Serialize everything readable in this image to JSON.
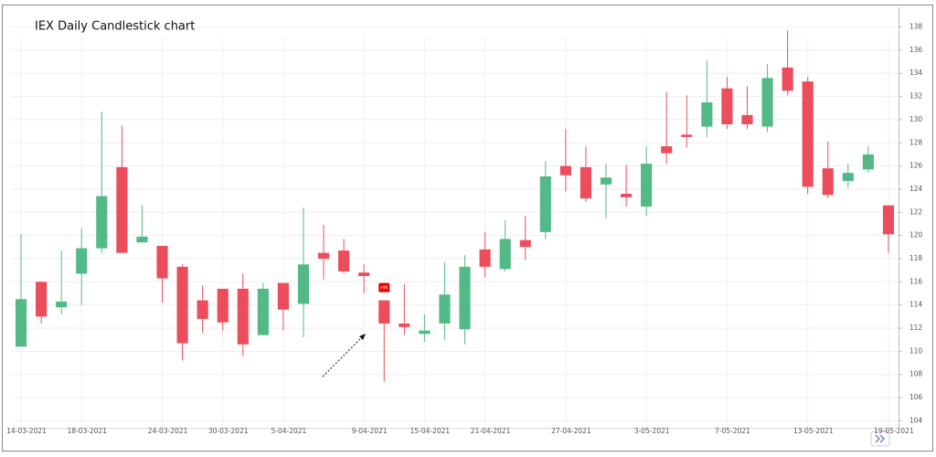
{
  "chart_data": {
    "type": "candlestick",
    "title": "IEX Daily Candlestick chart",
    "categories": [
      "14-03-2021",
      null,
      null,
      "18-03-2021",
      null,
      null,
      null,
      "24-03-2021",
      null,
      null,
      "30-03-2021",
      null,
      null,
      "5-04-2021",
      null,
      null,
      null,
      "9-04-2021",
      null,
      null,
      "15-04-2021",
      null,
      null,
      "21-04-2021",
      null,
      null,
      null,
      "27-04-2021",
      null,
      null,
      null,
      "3-05-2021",
      null,
      null,
      null,
      "7-05-2021",
      null,
      null,
      null,
      "13-05-2021",
      null,
      null,
      null,
      "19-05-2021"
    ],
    "open": [
      110.4,
      116.0,
      113.8,
      116.7,
      118.9,
      125.9,
      119.4,
      119.1,
      117.3,
      114.4,
      115.4,
      115.4,
      111.4,
      115.9,
      114.1,
      118.5,
      118.7,
      116.8,
      114.4,
      112.4,
      111.5,
      112.4,
      111.9,
      118.8,
      117.1,
      119.6,
      120.3,
      126.0,
      125.9,
      124.4,
      123.6,
      122.5,
      127.7,
      128.7,
      129.4,
      132.7,
      130.4,
      129.4,
      134.5,
      133.3,
      125.8,
      124.7,
      125.7,
      122.6
    ],
    "high": [
      120.1,
      116.0,
      118.7,
      120.6,
      130.7,
      129.5,
      122.6,
      119.1,
      117.5,
      115.7,
      115.4,
      116.7,
      115.9,
      115.9,
      122.4,
      120.9,
      119.7,
      117.5,
      114.4,
      115.8,
      113.2,
      117.7,
      118.3,
      120.3,
      121.3,
      121.7,
      126.4,
      129.2,
      127.7,
      126.2,
      126.1,
      127.7,
      132.4,
      132.1,
      135.1,
      133.7,
      132.9,
      134.8,
      137.7,
      133.7,
      128.1,
      126.2,
      127.7,
      122.6
    ],
    "low": [
      110.4,
      112.4,
      113.2,
      114.0,
      118.5,
      118.5,
      119.4,
      114.2,
      109.2,
      111.6,
      111.8,
      109.6,
      111.4,
      111.8,
      111.2,
      116.2,
      116.7,
      115.0,
      107.4,
      111.4,
      110.8,
      111.0,
      110.6,
      116.4,
      116.9,
      117.9,
      119.7,
      123.8,
      122.9,
      121.5,
      122.5,
      121.7,
      126.2,
      127.6,
      128.5,
      129.2,
      129.2,
      128.9,
      132.1,
      123.6,
      123.2,
      124.1,
      125.4,
      118.5
    ],
    "close": [
      114.5,
      113.0,
      114.3,
      118.9,
      123.4,
      118.5,
      119.9,
      116.3,
      110.7,
      112.8,
      112.5,
      110.6,
      115.4,
      113.6,
      117.5,
      118.0,
      116.9,
      116.5,
      112.4,
      112.1,
      111.8,
      114.9,
      117.3,
      117.3,
      119.7,
      119.0,
      125.1,
      125.2,
      123.2,
      125.0,
      123.3,
      126.2,
      127.1,
      128.5,
      131.5,
      129.6,
      129.6,
      133.6,
      132.5,
      124.2,
      123.5,
      125.4,
      127.0,
      120.1
    ],
    "up_color": "#53b987",
    "down_color": "#eb4d5c",
    "ylim": [
      103.4,
      139.7
    ],
    "yticks": [
      104,
      106,
      108,
      110,
      112,
      114,
      116,
      118,
      120,
      122,
      124,
      126,
      128,
      130,
      132,
      134,
      136,
      138
    ],
    "grid": true,
    "annotations": [
      {
        "label": "HM",
        "index": 18,
        "color": "#e60000"
      }
    ]
  }
}
